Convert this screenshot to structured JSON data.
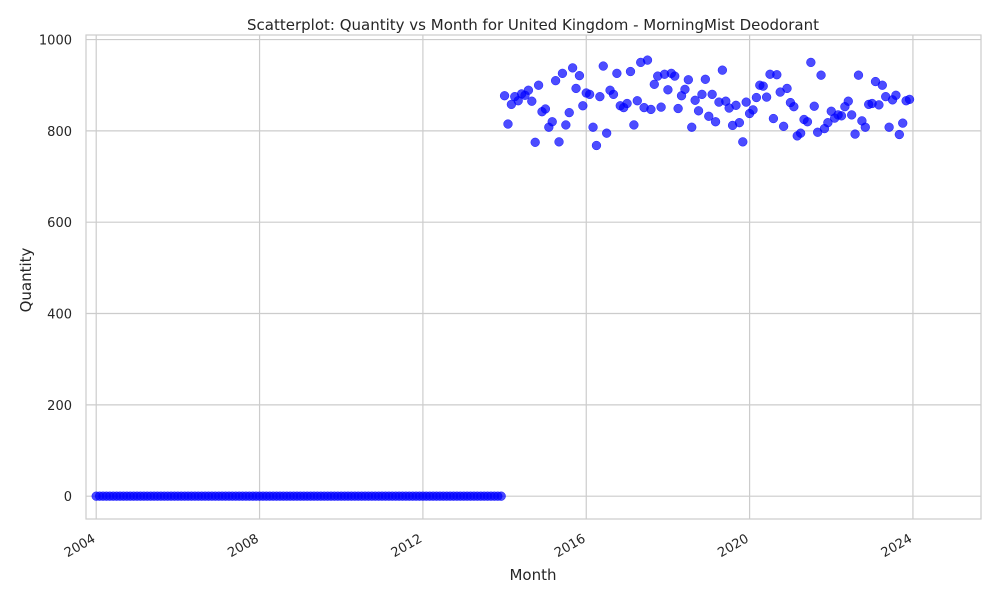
{
  "chart_data": {
    "type": "scatter",
    "title": "Scatterplot: Quantity vs Month for United Kingdom - MorningMist Deodorant",
    "xlabel": "Month",
    "ylabel": "Quantity",
    "x_ticks": [
      "2004",
      "2008",
      "2012",
      "2016",
      "2020",
      "2024"
    ],
    "y_ticks": [
      "0",
      "200",
      "400",
      "600",
      "800",
      "1000"
    ],
    "xlim": [
      "2003-10",
      "2025-09"
    ],
    "ylim": [
      -50,
      1010
    ],
    "grid": true,
    "point_color": "#0000ff",
    "start_month": "2004-01",
    "values": [
      0,
      0,
      0,
      0,
      0,
      0,
      0,
      0,
      0,
      0,
      0,
      0,
      0,
      0,
      0,
      0,
      0,
      0,
      0,
      0,
      0,
      0,
      0,
      0,
      0,
      0,
      0,
      0,
      0,
      0,
      0,
      0,
      0,
      0,
      0,
      0,
      0,
      0,
      0,
      0,
      0,
      0,
      0,
      0,
      0,
      0,
      0,
      0,
      0,
      0,
      0,
      0,
      0,
      0,
      0,
      0,
      0,
      0,
      0,
      0,
      0,
      0,
      0,
      0,
      0,
      0,
      0,
      0,
      0,
      0,
      0,
      0,
      0,
      0,
      0,
      0,
      0,
      0,
      0,
      0,
      0,
      0,
      0,
      0,
      0,
      0,
      0,
      0,
      0,
      0,
      0,
      0,
      0,
      0,
      0,
      0,
      0,
      0,
      0,
      0,
      0,
      0,
      0,
      0,
      0,
      0,
      0,
      0,
      0,
      0,
      0,
      0,
      0,
      0,
      0,
      0,
      0,
      0,
      0,
      0,
      877,
      815,
      858,
      875,
      866,
      881,
      878,
      889,
      865,
      775,
      900,
      842,
      848,
      808,
      820,
      910,
      776,
      926,
      813,
      840,
      938,
      893,
      921,
      855,
      883,
      880,
      808,
      768,
      875,
      942,
      795,
      889,
      880,
      926,
      855,
      851,
      860,
      930,
      813,
      866,
      950,
      851,
      955,
      847,
      902,
      920,
      852,
      924,
      890,
      926,
      920,
      849,
      877,
      891,
      912,
      808,
      867,
      844,
      880,
      913,
      832,
      880,
      820,
      863,
      933,
      865,
      850,
      812,
      856,
      818,
      776,
      863,
      838,
      846,
      873,
      900,
      898,
      874,
      924,
      827,
      923,
      885,
      810,
      893,
      862,
      853,
      789,
      795,
      825,
      820,
      950,
      854,
      797,
      922,
      805,
      818,
      843,
      828,
      835,
      833,
      853,
      865,
      835,
      793,
      922,
      822,
      808,
      858,
      860,
      908,
      857,
      900,
      875,
      808,
      868,
      878,
      792,
      817,
      866,
      869
    ]
  }
}
